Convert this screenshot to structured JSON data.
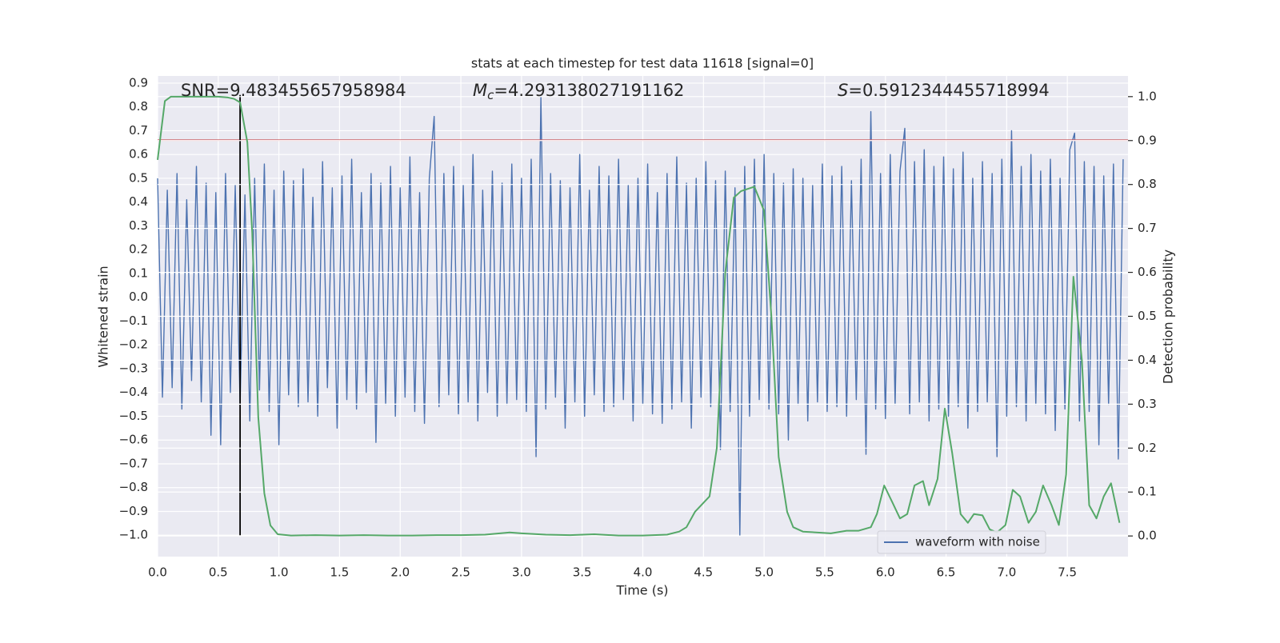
{
  "chart_data": {
    "type": "line",
    "title": "stats at each timestep for test data 11618 [signal=0]",
    "x_label": "Time (s)",
    "y_label": "Whitened strain",
    "y2_label": "Detection probability",
    "annotations": {
      "snr": "SNR=9.483455657958984",
      "mc": {
        "symbol": "M",
        "subscript": "c",
        "text": "=4.293138027191162"
      },
      "s": {
        "symbol": "S",
        "text": "=0.5912344455718994"
      }
    },
    "xlim": [
      0,
      8
    ],
    "ylim": [
      -1.09,
      0.93
    ],
    "y2lim": [
      -0.047,
      1.047
    ],
    "grid": true,
    "legend": "lower right",
    "xticks": [
      {
        "value": 0,
        "label": "0.0"
      },
      {
        "value": 0.5,
        "label": "0.5"
      },
      {
        "value": 1,
        "label": "1.0"
      },
      {
        "value": 1.5,
        "label": "1.5"
      },
      {
        "value": 2,
        "label": "2.0"
      },
      {
        "value": 2.5,
        "label": "2.5"
      },
      {
        "value": 3,
        "label": "3.0"
      },
      {
        "value": 3.5,
        "label": "3.5"
      },
      {
        "value": 4,
        "label": "4.0"
      },
      {
        "value": 4.5,
        "label": "4.5"
      },
      {
        "value": 5,
        "label": "5.0"
      },
      {
        "value": 5.5,
        "label": "5.5"
      },
      {
        "value": 6,
        "label": "6.0"
      },
      {
        "value": 6.5,
        "label": "6.5"
      },
      {
        "value": 7,
        "label": "7.0"
      },
      {
        "value": 7.5,
        "label": "7.5"
      }
    ],
    "yticks": [
      {
        "value": -1,
        "label": "−1.0"
      },
      {
        "value": -0.9,
        "label": "−0.9"
      },
      {
        "value": -0.8,
        "label": "−0.8"
      },
      {
        "value": -0.7,
        "label": "−0.7"
      },
      {
        "value": -0.6,
        "label": "−0.6"
      },
      {
        "value": -0.5,
        "label": "−0.5"
      },
      {
        "value": -0.4,
        "label": "−0.4"
      },
      {
        "value": -0.3,
        "label": "−0.3"
      },
      {
        "value": -0.2,
        "label": "−0.2"
      },
      {
        "value": -0.1,
        "label": "−0.1"
      },
      {
        "value": 0,
        "label": "0.0"
      },
      {
        "value": 0.1,
        "label": "0.1"
      },
      {
        "value": 0.2,
        "label": "0.2"
      },
      {
        "value": 0.3,
        "label": "0.3"
      },
      {
        "value": 0.4,
        "label": "0.4"
      },
      {
        "value": 0.5,
        "label": "0.5"
      },
      {
        "value": 0.6,
        "label": "0.6"
      },
      {
        "value": 0.7,
        "label": "0.7"
      },
      {
        "value": 0.8,
        "label": "0.8"
      },
      {
        "value": 0.9,
        "label": "0.9"
      }
    ],
    "y2ticks": [
      {
        "value": 0,
        "label": "0.0"
      },
      {
        "value": 0.1,
        "label": "0.1"
      },
      {
        "value": 0.2,
        "label": "0.2"
      },
      {
        "value": 0.3,
        "label": "0.3"
      },
      {
        "value": 0.4,
        "label": "0.4"
      },
      {
        "value": 0.5,
        "label": "0.5"
      },
      {
        "value": 0.6,
        "label": "0.6"
      },
      {
        "value": 0.7,
        "label": "0.7"
      },
      {
        "value": 0.8,
        "label": "0.8"
      },
      {
        "value": 0.9,
        "label": "0.9"
      },
      {
        "value": 1,
        "label": "1.0"
      }
    ],
    "series": [
      {
        "name": "waveform with noise",
        "color": "#4c72b0",
        "x": [
          0,
          0.04,
          0.08,
          0.12,
          0.16,
          0.2,
          0.24,
          0.28,
          0.32,
          0.36,
          0.4,
          0.44,
          0.48,
          0.52,
          0.56,
          0.6,
          0.64,
          0.68,
          0.72,
          0.76,
          0.8,
          0.84,
          0.88,
          0.92,
          0.96,
          1,
          1.04,
          1.08,
          1.12,
          1.16,
          1.2,
          1.24,
          1.28,
          1.32,
          1.36,
          1.4,
          1.44,
          1.48,
          1.52,
          1.56,
          1.6,
          1.64,
          1.68,
          1.72,
          1.76,
          1.8,
          1.84,
          1.88,
          1.92,
          1.96,
          2,
          2.04,
          2.08,
          2.12,
          2.16,
          2.2,
          2.24,
          2.28,
          2.32,
          2.36,
          2.4,
          2.44,
          2.48,
          2.52,
          2.56,
          2.6,
          2.64,
          2.68,
          2.72,
          2.76,
          2.8,
          2.84,
          2.88,
          2.92,
          2.96,
          3,
          3.04,
          3.08,
          3.12,
          3.16,
          3.2,
          3.24,
          3.28,
          3.32,
          3.36,
          3.4,
          3.44,
          3.48,
          3.52,
          3.56,
          3.6,
          3.64,
          3.68,
          3.72,
          3.76,
          3.8,
          3.84,
          3.88,
          3.92,
          3.96,
          4,
          4.04,
          4.08,
          4.12,
          4.16,
          4.2,
          4.24,
          4.28,
          4.32,
          4.36,
          4.4,
          4.44,
          4.48,
          4.52,
          4.56,
          4.6,
          4.64,
          4.68,
          4.72,
          4.76,
          4.8,
          4.84,
          4.88,
          4.92,
          4.96,
          5,
          5.04,
          5.08,
          5.12,
          5.16,
          5.2,
          5.24,
          5.28,
          5.32,
          5.36,
          5.4,
          5.44,
          5.48,
          5.52,
          5.56,
          5.6,
          5.64,
          5.68,
          5.72,
          5.76,
          5.8,
          5.84,
          5.88,
          5.92,
          5.96,
          6,
          6.04,
          6.08,
          6.12,
          6.16,
          6.2,
          6.24,
          6.28,
          6.32,
          6.36,
          6.4,
          6.44,
          6.48,
          6.52,
          6.56,
          6.6,
          6.64,
          6.68,
          6.72,
          6.76,
          6.8,
          6.84,
          6.88,
          6.92,
          6.96,
          7,
          7.04,
          7.08,
          7.12,
          7.16,
          7.2,
          7.24,
          7.28,
          7.32,
          7.36,
          7.4,
          7.44,
          7.48,
          7.52,
          7.56,
          7.6,
          7.64,
          7.68,
          7.72,
          7.76,
          7.8,
          7.84,
          7.88,
          7.92,
          7.96
        ],
        "values": [
          0.5,
          -0.42,
          0.45,
          -0.38,
          0.52,
          -0.47,
          0.41,
          -0.35,
          0.55,
          -0.44,
          0.48,
          -0.58,
          0.44,
          -0.62,
          0.52,
          -0.4,
          0.47,
          -0.45,
          0.43,
          -0.52,
          0.5,
          -0.39,
          0.56,
          -0.48,
          0.45,
          -0.62,
          0.53,
          -0.41,
          0.49,
          -0.46,
          0.54,
          -0.44,
          0.42,
          -0.5,
          0.57,
          -0.38,
          0.46,
          -0.55,
          0.51,
          -0.43,
          0.58,
          -0.47,
          0.44,
          -0.4,
          0.52,
          -0.61,
          0.48,
          -0.45,
          0.55,
          -0.5,
          0.46,
          -0.42,
          0.59,
          -0.48,
          0.44,
          -0.53,
          0.5,
          0.76,
          -0.46,
          0.52,
          -0.41,
          0.55,
          -0.49,
          0.47,
          -0.44,
          0.6,
          -0.52,
          0.45,
          -0.4,
          0.53,
          -0.5,
          0.48,
          -0.45,
          0.56,
          -0.43,
          0.5,
          -0.48,
          0.58,
          -0.67,
          0.84,
          -0.47,
          0.52,
          -0.42,
          0.49,
          -0.55,
          0.46,
          -0.44,
          0.6,
          -0.5,
          0.45,
          -0.41,
          0.55,
          -0.48,
          0.51,
          -0.46,
          0.58,
          -0.43,
          0.47,
          -0.52,
          0.5,
          -0.45,
          0.56,
          -0.49,
          0.44,
          -0.53,
          0.52,
          -0.47,
          0.59,
          -0.44,
          0.48,
          -0.55,
          0.5,
          -0.42,
          0.57,
          -0.46,
          0.49,
          -0.64,
          0.53,
          -0.48,
          0.46,
          -1.0,
          0.55,
          -0.5,
          0.58,
          -0.43,
          0.6,
          -0.47,
          0.52,
          -0.49,
          0.48,
          -0.6,
          0.54,
          -0.45,
          0.5,
          -0.52,
          0.47,
          -0.44,
          0.56,
          -0.48,
          0.51,
          -0.46,
          0.55,
          -0.5,
          0.49,
          -0.43,
          0.58,
          -0.66,
          0.78,
          -0.47,
          0.52,
          -0.51,
          0.6,
          -0.45,
          0.53,
          0.71,
          -0.49,
          0.57,
          -0.44,
          0.62,
          -0.52,
          0.55,
          -0.47,
          0.59,
          -0.5,
          0.54,
          -0.46,
          0.61,
          -0.55,
          0.5,
          -0.48,
          0.57,
          -0.44,
          0.52,
          -0.67,
          0.58,
          -0.5,
          0.7,
          -0.46,
          0.55,
          -0.52,
          0.6,
          -0.45,
          0.53,
          -0.49,
          0.58,
          -0.56,
          0.5,
          -0.47,
          0.62,
          0.69,
          -0.52,
          0.57,
          -0.48,
          0.55,
          -0.62,
          0.51,
          -0.45,
          0.56,
          -0.68,
          0.58
        ]
      },
      {
        "color": "#55a868",
        "axis": "y2",
        "x": [
          0,
          0.06,
          0.11,
          0.2,
          0.3,
          0.4,
          0.5,
          0.58,
          0.63,
          0.68,
          0.74,
          0.78,
          0.83,
          0.88,
          0.93,
          0.99,
          1.1,
          1.3,
          1.5,
          1.7,
          1.9,
          2.1,
          2.3,
          2.5,
          2.7,
          2.9,
          3.0,
          3.2,
          3.4,
          3.6,
          3.8,
          4.0,
          4.2,
          4.3,
          4.36,
          4.43,
          4.55,
          4.61,
          4.68,
          4.75,
          4.81,
          4.92,
          5.0,
          5.06,
          5.12,
          5.19,
          5.24,
          5.32,
          5.55,
          5.68,
          5.78,
          5.88,
          5.93,
          5.99,
          6.06,
          6.12,
          6.18,
          6.24,
          6.31,
          6.36,
          6.43,
          6.49,
          6.55,
          6.62,
          6.68,
          6.73,
          6.8,
          6.86,
          6.92,
          6.99,
          7.05,
          7.11,
          7.18,
          7.24,
          7.3,
          7.37,
          7.43,
          7.49,
          7.55,
          7.62,
          7.68,
          7.74,
          7.8,
          7.86,
          7.93
        ],
        "values": [
          0.856,
          0.99,
          1.0,
          1.0,
          1.0,
          1.0,
          1.0,
          0.998,
          0.995,
          0.987,
          0.896,
          0.69,
          0.27,
          0.097,
          0.024,
          0.004,
          0.001,
          0.002,
          0.001,
          0.002,
          0.001,
          0.001,
          0.002,
          0.002,
          0.003,
          0.008,
          0.006,
          0.003,
          0.002,
          0.004,
          0.001,
          0.001,
          0.003,
          0.01,
          0.02,
          0.055,
          0.09,
          0.2,
          0.6,
          0.77,
          0.785,
          0.795,
          0.74,
          0.5,
          0.18,
          0.055,
          0.02,
          0.01,
          0.006,
          0.012,
          0.012,
          0.02,
          0.05,
          0.115,
          0.075,
          0.04,
          0.05,
          0.115,
          0.125,
          0.07,
          0.13,
          0.29,
          0.19,
          0.05,
          0.03,
          0.05,
          0.047,
          0.015,
          0.008,
          0.025,
          0.105,
          0.09,
          0.03,
          0.055,
          0.115,
          0.07,
          0.025,
          0.14,
          0.59,
          0.4,
          0.07,
          0.04,
          0.09,
          0.12,
          0.03
        ]
      }
    ],
    "lines": [
      {
        "color": "#c44e52",
        "x": [
          0,
          8
        ],
        "values": [
          0.66,
          0.66
        ]
      },
      {
        "color": "#000000",
        "x": [
          0.68,
          0.68
        ],
        "values": [
          -1.0,
          0.85
        ]
      }
    ]
  }
}
